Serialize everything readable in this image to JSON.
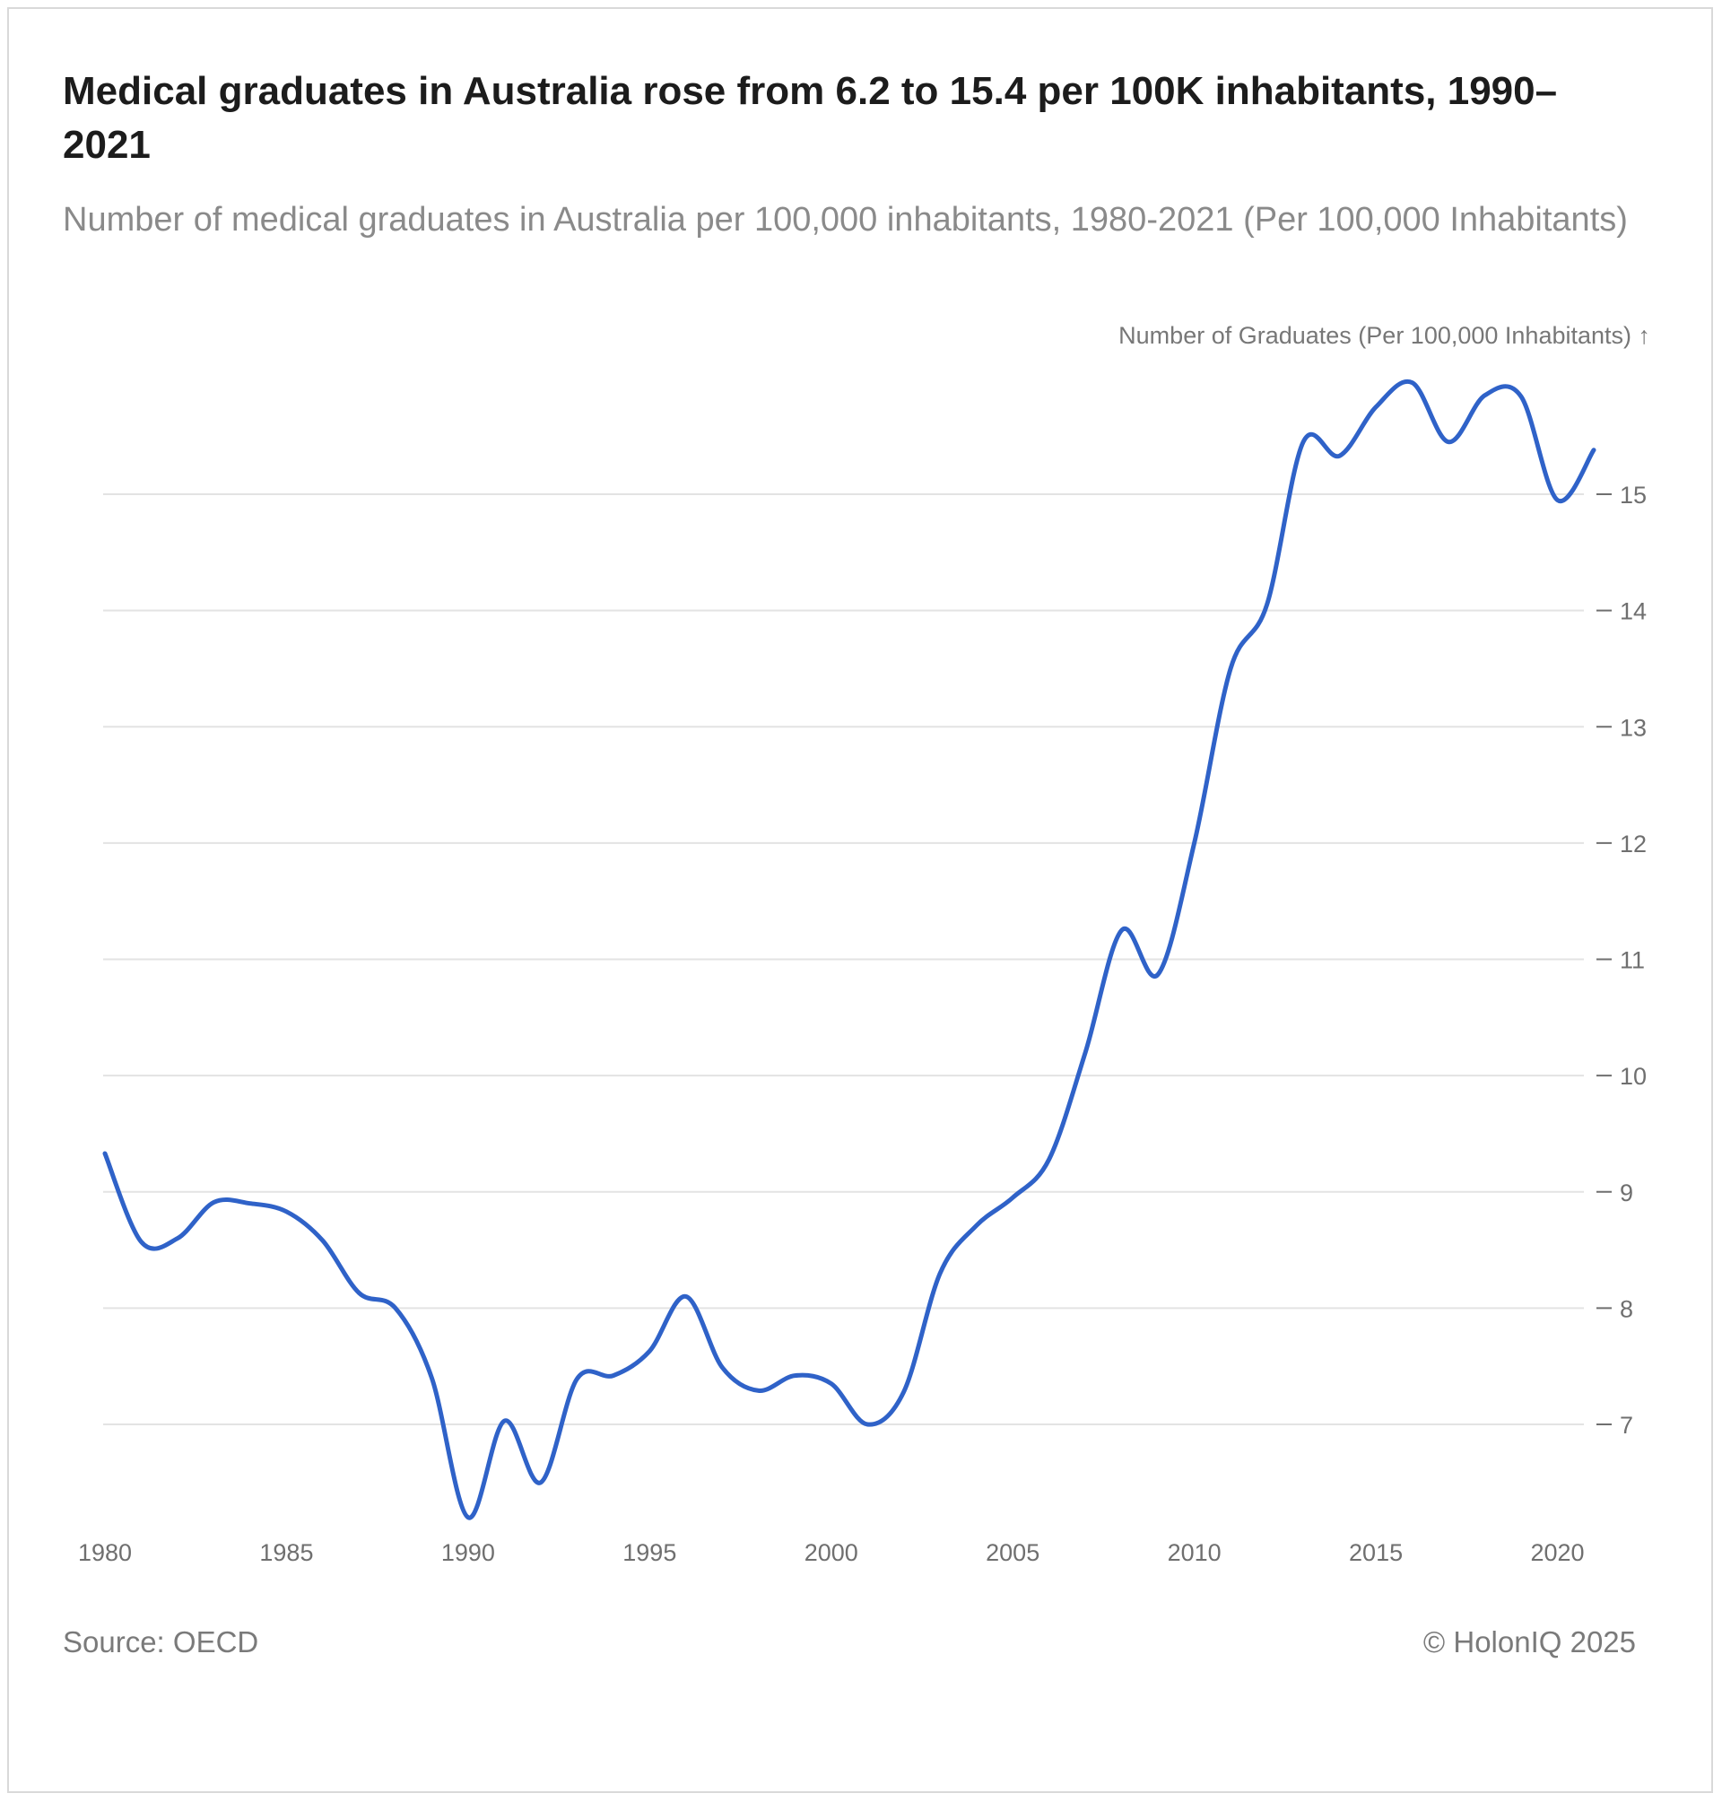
{
  "header": {
    "title": "Medical graduates in Australia rose from 6.2 to 15.4 per 100K inhabitants, 1990–2021",
    "subtitle": "Number of medical graduates in Australia per 100,000 inhabitants, 1980-2021 (Per 100,000 Inhabitants)"
  },
  "footer": {
    "source": "Source: OECD",
    "copyright": "© HolonIQ 2025"
  },
  "colors": {
    "line": "#2f62c8",
    "grid": "#e3e3e3",
    "axis_text": "#6f6f6f"
  },
  "chart_data": {
    "type": "line",
    "title": "Medical graduates in Australia rose from 6.2 to 15.4 per 100K inhabitants, 1990–2021",
    "subtitle": "Number of medical graduates in Australia per 100,000 inhabitants, 1980-2021 (Per 100,000 Inhabitants)",
    "xlabel": "",
    "ylabel": "Number of Graduates (Per 100,000 Inhabitants) ↑",
    "xlim": [
      1980,
      2021
    ],
    "ylim": [
      6.2,
      16.1
    ],
    "x_ticks": [
      1980,
      1985,
      1990,
      1995,
      2000,
      2005,
      2010,
      2015,
      2020
    ],
    "y_ticks": [
      7,
      8,
      9,
      10,
      11,
      12,
      13,
      14,
      15
    ],
    "y_tick_side": "right",
    "grid": true,
    "series": [
      {
        "name": "Australia",
        "x": [
          1980,
          1981,
          1982,
          1983,
          1984,
          1985,
          1986,
          1987,
          1988,
          1989,
          1990,
          1991,
          1992,
          1993,
          1994,
          1995,
          1996,
          1997,
          1998,
          1999,
          2000,
          2001,
          2002,
          2003,
          2004,
          2005,
          2006,
          2007,
          2008,
          2009,
          2010,
          2011,
          2012,
          2013,
          2014,
          2015,
          2016,
          2017,
          2018,
          2019,
          2020,
          2021
        ],
        "values": [
          9.33,
          8.57,
          8.6,
          8.91,
          8.9,
          8.83,
          8.58,
          8.13,
          8.0,
          7.4,
          6.2,
          7.03,
          6.5,
          7.39,
          7.42,
          7.63,
          8.1,
          7.49,
          7.29,
          7.42,
          7.35,
          7.0,
          7.28,
          8.3,
          8.71,
          8.95,
          9.28,
          10.2,
          11.25,
          10.87,
          12.0,
          13.5,
          14.05,
          15.45,
          15.33,
          15.75,
          15.96,
          15.45,
          15.85,
          15.84,
          14.95,
          15.38
        ]
      }
    ]
  }
}
